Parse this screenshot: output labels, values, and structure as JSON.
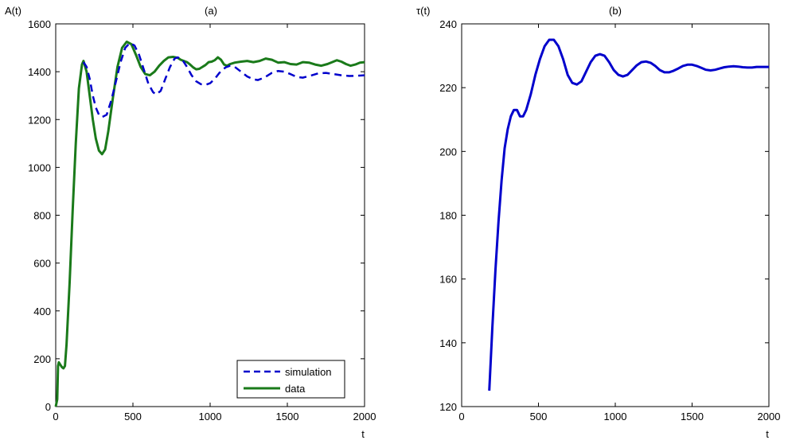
{
  "chart_data": [
    {
      "type": "line",
      "title": "(a)",
      "xlabel": "t",
      "ylabel": "A(t)",
      "xlim": [
        0,
        2000
      ],
      "ylim": [
        0,
        1600
      ],
      "xticks": [
        "0",
        "500",
        "1000",
        "1500",
        "2000"
      ],
      "yticks": [
        "0",
        "200",
        "400",
        "600",
        "800",
        "1000",
        "1200",
        "1400",
        "1600"
      ],
      "grid": false,
      "legend_position": "bottom-right",
      "series": [
        {
          "name": "simulation",
          "style": "dashed",
          "color": "#0000cc",
          "points": [
            [
              180,
              1440
            ],
            [
              200,
              1420
            ],
            [
              220,
              1370
            ],
            [
              240,
              1300
            ],
            [
              260,
              1250
            ],
            [
              280,
              1220
            ],
            [
              300,
              1210
            ],
            [
              330,
              1220
            ],
            [
              360,
              1280
            ],
            [
              390,
              1360
            ],
            [
              420,
              1440
            ],
            [
              450,
              1500
            ],
            [
              480,
              1520
            ],
            [
              510,
              1510
            ],
            [
              540,
              1470
            ],
            [
              570,
              1410
            ],
            [
              600,
              1350
            ],
            [
              630,
              1315
            ],
            [
              650,
              1305
            ],
            [
              680,
              1320
            ],
            [
              710,
              1370
            ],
            [
              740,
              1420
            ],
            [
              770,
              1455
            ],
            [
              790,
              1460
            ],
            [
              820,
              1450
            ],
            [
              850,
              1420
            ],
            [
              880,
              1385
            ],
            [
              910,
              1360
            ],
            [
              940,
              1348
            ],
            [
              970,
              1345
            ],
            [
              1000,
              1352
            ],
            [
              1030,
              1370
            ],
            [
              1060,
              1395
            ],
            [
              1100,
              1418
            ],
            [
              1130,
              1425
            ],
            [
              1160,
              1420
            ],
            [
              1200,
              1400
            ],
            [
              1240,
              1380
            ],
            [
              1280,
              1368
            ],
            [
              1310,
              1365
            ],
            [
              1350,
              1375
            ],
            [
              1400,
              1395
            ],
            [
              1440,
              1403
            ],
            [
              1480,
              1400
            ],
            [
              1520,
              1390
            ],
            [
              1560,
              1378
            ],
            [
              1600,
              1375
            ],
            [
              1650,
              1383
            ],
            [
              1700,
              1393
            ],
            [
              1750,
              1395
            ],
            [
              1800,
              1390
            ],
            [
              1850,
              1385
            ],
            [
              1900,
              1382
            ],
            [
              1950,
              1383
            ],
            [
              2000,
              1385
            ]
          ]
        },
        {
          "name": "data",
          "style": "solid",
          "color": "#1a7a1a",
          "points": [
            [
              0,
              0
            ],
            [
              10,
              30
            ],
            [
              15,
              170
            ],
            [
              20,
              185
            ],
            [
              30,
              175
            ],
            [
              40,
              165
            ],
            [
              50,
              160
            ],
            [
              60,
              170
            ],
            [
              70,
              260
            ],
            [
              90,
              520
            ],
            [
              110,
              820
            ],
            [
              130,
              1100
            ],
            [
              150,
              1330
            ],
            [
              170,
              1430
            ],
            [
              180,
              1445
            ],
            [
              200,
              1400
            ],
            [
              220,
              1300
            ],
            [
              240,
              1200
            ],
            [
              260,
              1120
            ],
            [
              280,
              1070
            ],
            [
              300,
              1055
            ],
            [
              320,
              1075
            ],
            [
              340,
              1150
            ],
            [
              370,
              1290
            ],
            [
              400,
              1420
            ],
            [
              430,
              1500
            ],
            [
              460,
              1525
            ],
            [
              490,
              1515
            ],
            [
              520,
              1470
            ],
            [
              550,
              1420
            ],
            [
              580,
              1390
            ],
            [
              610,
              1385
            ],
            [
              640,
              1400
            ],
            [
              670,
              1425
            ],
            [
              700,
              1445
            ],
            [
              730,
              1460
            ],
            [
              760,
              1462
            ],
            [
              790,
              1458
            ],
            [
              810,
              1450
            ],
            [
              830,
              1445
            ],
            [
              850,
              1440
            ],
            [
              870,
              1430
            ],
            [
              890,
              1418
            ],
            [
              910,
              1410
            ],
            [
              930,
              1412
            ],
            [
              950,
              1420
            ],
            [
              970,
              1428
            ],
            [
              990,
              1440
            ],
            [
              1010,
              1442
            ],
            [
              1030,
              1448
            ],
            [
              1050,
              1460
            ],
            [
              1070,
              1450
            ],
            [
              1090,
              1430
            ],
            [
              1110,
              1425
            ],
            [
              1130,
              1432
            ],
            [
              1160,
              1438
            ],
            [
              1200,
              1442
            ],
            [
              1240,
              1445
            ],
            [
              1280,
              1440
            ],
            [
              1320,
              1445
            ],
            [
              1360,
              1455
            ],
            [
              1400,
              1450
            ],
            [
              1440,
              1438
            ],
            [
              1480,
              1440
            ],
            [
              1520,
              1432
            ],
            [
              1560,
              1430
            ],
            [
              1600,
              1440
            ],
            [
              1640,
              1438
            ],
            [
              1680,
              1430
            ],
            [
              1720,
              1425
            ],
            [
              1760,
              1432
            ],
            [
              1790,
              1440
            ],
            [
              1820,
              1448
            ],
            [
              1850,
              1442
            ],
            [
              1880,
              1432
            ],
            [
              1910,
              1425
            ],
            [
              1940,
              1430
            ],
            [
              1970,
              1438
            ],
            [
              2000,
              1440
            ]
          ]
        }
      ]
    },
    {
      "type": "line",
      "title": "(b)",
      "xlabel": "t",
      "ylabel": "τ(t)",
      "xlim": [
        0,
        2000
      ],
      "ylim": [
        120,
        240
      ],
      "xticks": [
        "0",
        "500",
        "1000",
        "1500",
        "2000"
      ],
      "yticks": [
        "120",
        "140",
        "160",
        "180",
        "200",
        "220",
        "240"
      ],
      "grid": false,
      "series": [
        {
          "color": "#0000cc",
          "style": "solid",
          "points": [
            [
              180,
              125
            ],
            [
              200,
              145
            ],
            [
              220,
              163
            ],
            [
              240,
              178
            ],
            [
              260,
              191
            ],
            [
              280,
              201
            ],
            [
              300,
              207
            ],
            [
              320,
              211
            ],
            [
              340,
              213
            ],
            [
              360,
              213
            ],
            [
              380,
              211
            ],
            [
              400,
              211
            ],
            [
              420,
              213
            ],
            [
              450,
              218
            ],
            [
              480,
              224
            ],
            [
              510,
              229
            ],
            [
              540,
              233
            ],
            [
              570,
              235
            ],
            [
              600,
              235
            ],
            [
              630,
              233
            ],
            [
              660,
              229
            ],
            [
              690,
              224
            ],
            [
              720,
              221.5
            ],
            [
              750,
              221
            ],
            [
              780,
              222
            ],
            [
              810,
              225
            ],
            [
              840,
              228
            ],
            [
              870,
              230
            ],
            [
              900,
              230.5
            ],
            [
              930,
              230
            ],
            [
              960,
              228
            ],
            [
              990,
              225.5
            ],
            [
              1020,
              224
            ],
            [
              1050,
              223.5
            ],
            [
              1080,
              224
            ],
            [
              1110,
              225.5
            ],
            [
              1140,
              227
            ],
            [
              1170,
              228
            ],
            [
              1200,
              228.2
            ],
            [
              1230,
              227.8
            ],
            [
              1260,
              226.8
            ],
            [
              1290,
              225.5
            ],
            [
              1320,
              224.8
            ],
            [
              1350,
              224.8
            ],
            [
              1380,
              225.3
            ],
            [
              1410,
              226
            ],
            [
              1440,
              226.8
            ],
            [
              1470,
              227.2
            ],
            [
              1500,
              227.2
            ],
            [
              1530,
              226.8
            ],
            [
              1560,
              226.2
            ],
            [
              1590,
              225.6
            ],
            [
              1620,
              225.4
            ],
            [
              1650,
              225.6
            ],
            [
              1680,
              226
            ],
            [
              1710,
              226.4
            ],
            [
              1740,
              226.6
            ],
            [
              1770,
              226.7
            ],
            [
              1800,
              226.6
            ],
            [
              1830,
              226.4
            ],
            [
              1860,
              226.3
            ],
            [
              1890,
              226.3
            ],
            [
              1920,
              226.5
            ],
            [
              1950,
              226.5
            ],
            [
              2000,
              226.5
            ]
          ]
        }
      ]
    }
  ]
}
